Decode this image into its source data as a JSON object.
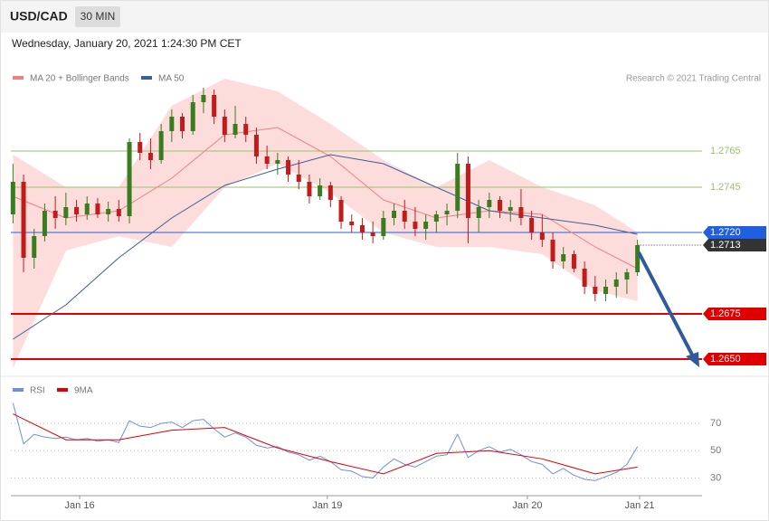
{
  "chart_data": [
    {
      "type": "candlestick",
      "title": "USD/CAD",
      "subtitle": "30 MIN",
      "date": "Wednesday, January 20, 2021 1:24:30 PM CET",
      "source": "Research © 2021 Trading Central",
      "xlim": [
        -0.2,
        65.1
      ],
      "ylim": [
        1.2643,
        1.2823
      ],
      "up_color": "#3a7d1e",
      "down_color": "#c31a1a",
      "candles": [
        [
          1.273,
          1.2758,
          1.2725,
          1.2748
        ],
        [
          1.2748,
          1.2752,
          1.2698,
          1.2706
        ],
        [
          1.2706,
          1.2722,
          1.27,
          1.2718
        ],
        [
          1.2718,
          1.2736,
          1.2715,
          1.2732
        ],
        [
          1.2732,
          1.274,
          1.2722,
          1.2728
        ],
        [
          1.2728,
          1.2742,
          1.2724,
          1.2734
        ],
        [
          1.2734,
          1.2738,
          1.2726,
          1.273
        ],
        [
          1.273,
          1.274,
          1.2727,
          1.2736
        ],
        [
          1.2736,
          1.2739,
          1.2728,
          1.273
        ],
        [
          1.273,
          1.2737,
          1.2726,
          1.2733
        ],
        [
          1.2733,
          1.2738,
          1.2726,
          1.2729
        ],
        [
          1.2729,
          1.2772,
          1.2725,
          1.277
        ],
        [
          1.277,
          1.2775,
          1.276,
          1.2764
        ],
        [
          1.2764,
          1.2772,
          1.2755,
          1.276
        ],
        [
          1.276,
          1.278,
          1.2758,
          1.2776
        ],
        [
          1.2776,
          1.2788,
          1.277,
          1.2784
        ],
        [
          1.2784,
          1.2786,
          1.2772,
          1.2776
        ],
        [
          1.2776,
          1.2796,
          1.2774,
          1.2792
        ],
        [
          1.2792,
          1.28,
          1.2786,
          1.2796
        ],
        [
          1.2796,
          1.2799,
          1.278,
          1.2784
        ],
        [
          1.2784,
          1.2788,
          1.277,
          1.2774
        ],
        [
          1.2774,
          1.279,
          1.2772,
          1.278
        ],
        [
          1.278,
          1.2784,
          1.277,
          1.2774
        ],
        [
          1.2774,
          1.2778,
          1.2758,
          1.2762
        ],
        [
          1.2762,
          1.2768,
          1.2755,
          1.2758
        ],
        [
          1.2758,
          1.2764,
          1.2752,
          1.276
        ],
        [
          1.276,
          1.2762,
          1.2748,
          1.2752
        ],
        [
          1.2752,
          1.276,
          1.2744,
          1.2748
        ],
        [
          1.2748,
          1.2752,
          1.2736,
          1.274
        ],
        [
          1.274,
          1.275,
          1.2738,
          1.2746
        ],
        [
          1.2746,
          1.2748,
          1.2734,
          1.2738
        ],
        [
          1.2738,
          1.274,
          1.2722,
          1.2726
        ],
        [
          1.2726,
          1.273,
          1.272,
          1.2724
        ],
        [
          1.2724,
          1.2728,
          1.2716,
          1.272
        ],
        [
          1.272,
          1.2726,
          1.2714,
          1.2718
        ],
        [
          1.2718,
          1.2732,
          1.2716,
          1.2728
        ],
        [
          1.2728,
          1.2736,
          1.2724,
          1.2732
        ],
        [
          1.2732,
          1.2738,
          1.2722,
          1.2726
        ],
        [
          1.2726,
          1.2734,
          1.2718,
          1.2722
        ],
        [
          1.2722,
          1.273,
          1.2716,
          1.2726
        ],
        [
          1.2726,
          1.2732,
          1.272,
          1.273
        ],
        [
          1.273,
          1.2736,
          1.2724,
          1.2732
        ],
        [
          1.2732,
          1.2764,
          1.2728,
          1.2758
        ],
        [
          1.2758,
          1.2762,
          1.2714,
          1.2728
        ],
        [
          1.2728,
          1.2738,
          1.272,
          1.2734
        ],
        [
          1.2734,
          1.2742,
          1.2728,
          1.2738
        ],
        [
          1.2738,
          1.274,
          1.2728,
          1.2732
        ],
        [
          1.2732,
          1.2738,
          1.2726,
          1.2734
        ],
        [
          1.2734,
          1.2744,
          1.2724,
          1.2728
        ],
        [
          1.2728,
          1.2732,
          1.2716,
          1.272
        ],
        [
          1.272,
          1.273,
          1.2712,
          1.2716
        ],
        [
          1.2716,
          1.272,
          1.27,
          1.2704
        ],
        [
          1.2704,
          1.2712,
          1.27,
          1.2708
        ],
        [
          1.2708,
          1.271,
          1.2698,
          1.27
        ],
        [
          1.27,
          1.2704,
          1.2686,
          1.269
        ],
        [
          1.269,
          1.2696,
          1.2682,
          1.2686
        ],
        [
          1.2686,
          1.2694,
          1.2682,
          1.269
        ],
        [
          1.269,
          1.2698,
          1.2684,
          1.2694
        ],
        [
          1.2694,
          1.27,
          1.2686,
          1.2698
        ],
        [
          1.2698,
          1.2716,
          1.2696,
          1.2713
        ]
      ],
      "series": [
        {
          "name": "MA 20 + Bollinger Bands",
          "color": "#f08080",
          "band_color": "#fddcdc",
          "x": [
            0,
            5,
            10,
            15,
            20,
            25,
            30,
            35,
            40,
            45,
            50,
            55,
            59
          ],
          "values": [
            1.274,
            1.2728,
            1.2732,
            1.275,
            1.2774,
            1.2778,
            1.2762,
            1.2738,
            1.2728,
            1.2732,
            1.273,
            1.2712,
            1.27
          ],
          "upper": [
            1.2763,
            1.2745,
            1.2745,
            1.279,
            1.2805,
            1.2798,
            1.278,
            1.276,
            1.2745,
            1.276,
            1.2745,
            1.2735,
            1.272
          ],
          "lower": [
            1.2645,
            1.271,
            1.2718,
            1.2712,
            1.2745,
            1.2758,
            1.2742,
            1.272,
            1.2712,
            1.2712,
            1.2708,
            1.2688,
            1.2682
          ]
        },
        {
          "name": "MA 50",
          "color": "#3c5f9a",
          "x": [
            0,
            5,
            10,
            15,
            20,
            25,
            30,
            35,
            40,
            45,
            50,
            55,
            59
          ],
          "values": [
            1.2661,
            1.268,
            1.2706,
            1.2728,
            1.2746,
            1.2755,
            1.2763,
            1.2758,
            1.2745,
            1.2732,
            1.2728,
            1.2724,
            1.2719
          ]
        }
      ],
      "levels": [
        {
          "value": 1.2765,
          "label": "1.2765",
          "color": "#9bc26b",
          "tag": false,
          "dash": false,
          "width": 1
        },
        {
          "value": 1.2745,
          "label": "1.2745",
          "color": "#9bc26b",
          "tag": false,
          "dash": false,
          "width": 1
        },
        {
          "value": 1.272,
          "label": "1.2720",
          "color": "#1f5fe0",
          "tag": true,
          "dash": false,
          "width": 1
        },
        {
          "value": 1.2713,
          "label": "1.2713",
          "color": "#333333",
          "tag": true,
          "dash": true,
          "width": 1
        },
        {
          "value": 1.2675,
          "label": "1.2675",
          "color": "#e00000",
          "tag": true,
          "dash": false,
          "width": 2
        },
        {
          "value": 1.265,
          "label": "1.2650",
          "color": "#e00000",
          "tag": true,
          "dash": false,
          "width": 2
        }
      ]
    },
    {
      "type": "line",
      "xlim": [
        -0.2,
        65.1
      ],
      "ylim": [
        17,
        90
      ],
      "yticks": [
        30,
        50,
        70
      ],
      "xticks": [
        {
          "value": 6.3,
          "label": "Jan 16"
        },
        {
          "value": 29.7,
          "label": "Jan 19"
        },
        {
          "value": 48.6,
          "label": "Jan 20"
        },
        {
          "value": 59.2,
          "label": "Jan 21"
        }
      ],
      "series": [
        {
          "name": "RSI",
          "color": "#6d8fe0",
          "values": [
            85,
            55,
            62,
            60,
            59,
            60,
            58,
            59,
            57,
            58,
            56,
            72,
            68,
            67,
            70,
            71,
            67,
            72,
            73,
            66,
            60,
            63,
            60,
            54,
            52,
            53,
            49,
            47,
            43,
            46,
            42,
            36,
            35,
            31,
            30,
            38,
            44,
            40,
            38,
            42,
            46,
            47,
            62,
            45,
            50,
            53,
            49,
            51,
            47,
            42,
            40,
            33,
            37,
            32,
            29,
            28,
            31,
            34,
            40,
            53
          ]
        },
        {
          "name": "9MA",
          "color": "#e00000",
          "x": [
            0,
            5,
            10,
            15,
            20,
            25,
            30,
            35,
            40,
            45,
            50,
            55,
            59
          ],
          "values": [
            77,
            58,
            58,
            65,
            67,
            52,
            42,
            33,
            48,
            50,
            44,
            33,
            38
          ]
        }
      ]
    }
  ]
}
